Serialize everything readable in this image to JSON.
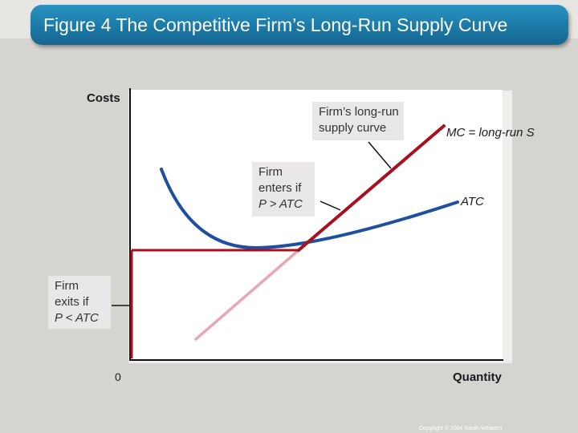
{
  "title": "Figure 4 The Competitive Firm’s Long-Run Supply Curve",
  "axes": {
    "y_label": "Costs",
    "x_label": "Quantity",
    "origin_label": "0"
  },
  "curve_labels": {
    "mc": "MC = long-run S",
    "atc": "ATC"
  },
  "callouts": {
    "supply": [
      "Firm’s long-run",
      "supply curve"
    ],
    "enter": [
      "Firm",
      "enters if",
      "P > ATC"
    ],
    "exit": [
      "Firm",
      "exits if",
      "P < ATC"
    ]
  },
  "copyright": "Copyright © 2004 South-Western",
  "colors": {
    "title_bar": "#1b7aa6",
    "atc_curve": "#1f4fa0",
    "mc_curve": "#a8101e",
    "mc_lower": "#eba6b4",
    "background": "#d6d4d0"
  }
}
